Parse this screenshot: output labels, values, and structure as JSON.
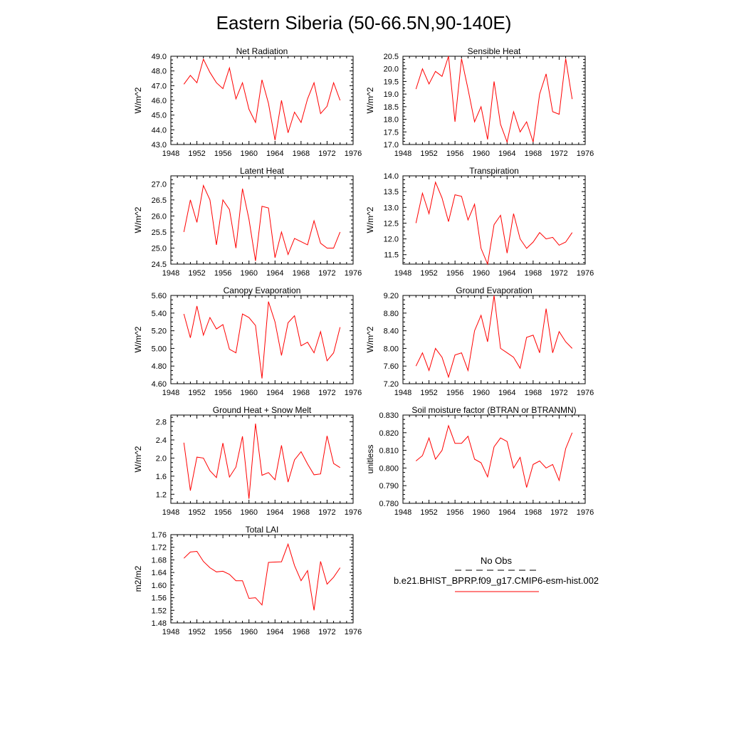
{
  "figure": {
    "title": "Eastern Siberia (50-66.5N,90-140E)",
    "line_color": "#ff0000",
    "legend": {
      "obs_label": "No Obs",
      "model_label": "b.e21.BHIST_BPRP.f09_g17.CMIP6-esm-hist.002"
    }
  },
  "chart_data": [
    {
      "type": "line",
      "title": "Net Radiation",
      "ylabel": "W/m^2",
      "xlim": [
        1948,
        1976
      ],
      "xticks": [
        "1948",
        "1952",
        "1956",
        "1960",
        "1964",
        "1968",
        "1972",
        "1976"
      ],
      "ylim": [
        43.0,
        49.0
      ],
      "yticks": [
        "43.0",
        "44.0",
        "45.0",
        "46.0",
        "47.0",
        "48.0",
        "49.0"
      ],
      "series": [
        {
          "x": [
            1950,
            1951,
            1952,
            1953,
            1954,
            1955,
            1956,
            1957,
            1958,
            1959,
            1960,
            1961,
            1962,
            1963,
            1964,
            1965,
            1966,
            1967,
            1968,
            1969,
            1970,
            1971,
            1972,
            1973,
            1974
          ],
          "values": [
            47.1,
            47.7,
            47.2,
            48.8,
            47.9,
            47.2,
            46.8,
            48.2,
            46.1,
            47.2,
            45.4,
            44.5,
            47.4,
            45.8,
            43.3,
            46.0,
            43.8,
            45.2,
            44.5,
            46.1,
            47.2,
            45.1,
            45.6,
            47.2,
            46.0
          ]
        }
      ]
    },
    {
      "type": "line",
      "title": "Sensible Heat",
      "ylabel": "W/m^2",
      "xlim": [
        1948,
        1976
      ],
      "xticks": [
        "1948",
        "1952",
        "1956",
        "1960",
        "1964",
        "1968",
        "1972",
        "1976"
      ],
      "ylim": [
        17.0,
        20.5
      ],
      "yticks": [
        "17.0",
        "17.5",
        "18.0",
        "18.5",
        "19.0",
        "19.5",
        "20.0",
        "20.5"
      ],
      "series": [
        {
          "x": [
            1950,
            1951,
            1952,
            1953,
            1954,
            1955,
            1956,
            1957,
            1958,
            1959,
            1960,
            1961,
            1962,
            1963,
            1964,
            1965,
            1966,
            1967,
            1968,
            1969,
            1970,
            1971,
            1972,
            1973,
            1974
          ],
          "values": [
            19.2,
            20.0,
            19.4,
            19.9,
            19.7,
            20.5,
            17.9,
            20.4,
            19.2,
            17.9,
            18.5,
            17.2,
            19.5,
            17.8,
            17.1,
            18.3,
            17.5,
            17.9,
            17.1,
            19.0,
            19.8,
            18.3,
            18.2,
            20.4,
            18.8
          ]
        }
      ]
    },
    {
      "type": "line",
      "title": "Latent Heat",
      "ylabel": "W/m^2",
      "xlim": [
        1948,
        1976
      ],
      "xticks": [
        "1948",
        "1952",
        "1956",
        "1960",
        "1964",
        "1968",
        "1972",
        "1976"
      ],
      "ylim": [
        24.5,
        27.25
      ],
      "yticks": [
        "24.5",
        "25.0",
        "25.5",
        "26.0",
        "26.5",
        "27.0"
      ],
      "series": [
        {
          "x": [
            1950,
            1951,
            1952,
            1953,
            1954,
            1955,
            1956,
            1957,
            1958,
            1959,
            1960,
            1961,
            1962,
            1963,
            1964,
            1965,
            1966,
            1967,
            1968,
            1969,
            1970,
            1971,
            1972,
            1973,
            1974
          ],
          "values": [
            25.5,
            26.5,
            25.8,
            26.95,
            26.5,
            25.1,
            26.5,
            26.2,
            25.0,
            26.85,
            25.9,
            24.6,
            26.3,
            26.25,
            24.7,
            25.5,
            24.8,
            25.3,
            25.2,
            25.1,
            25.85,
            25.15,
            25.0,
            25.0,
            25.5
          ]
        }
      ]
    },
    {
      "type": "line",
      "title": "Transpiration",
      "ylabel": "W/m^2",
      "xlim": [
        1948,
        1976
      ],
      "xticks": [
        "1948",
        "1952",
        "1956",
        "1960",
        "1964",
        "1968",
        "1972",
        "1976"
      ],
      "ylim": [
        11.2,
        14.0
      ],
      "yticks": [
        "11.5",
        "12.0",
        "12.5",
        "13.0",
        "13.5",
        "14.0"
      ],
      "series": [
        {
          "x": [
            1950,
            1951,
            1952,
            1953,
            1954,
            1955,
            1956,
            1957,
            1958,
            1959,
            1960,
            1961,
            1962,
            1963,
            1964,
            1965,
            1966,
            1967,
            1968,
            1969,
            1970,
            1971,
            1972,
            1973,
            1974
          ],
          "values": [
            12.5,
            13.45,
            12.8,
            13.8,
            13.3,
            12.55,
            13.4,
            13.35,
            12.6,
            13.1,
            11.7,
            11.2,
            12.45,
            12.75,
            11.55,
            12.8,
            12.0,
            11.7,
            11.9,
            12.2,
            12.0,
            12.05,
            11.8,
            11.9,
            12.2
          ]
        }
      ]
    },
    {
      "type": "line",
      "title": "Canopy Evaporation",
      "ylabel": "W/m^2",
      "xlim": [
        1948,
        1976
      ],
      "xticks": [
        "1948",
        "1952",
        "1956",
        "1960",
        "1964",
        "1968",
        "1972",
        "1976"
      ],
      "ylim": [
        4.6,
        5.6
      ],
      "yticks": [
        "4.60",
        "4.80",
        "5.00",
        "5.20",
        "5.40",
        "5.60"
      ],
      "series": [
        {
          "x": [
            1950,
            1951,
            1952,
            1953,
            1954,
            1955,
            1956,
            1957,
            1958,
            1959,
            1960,
            1961,
            1962,
            1963,
            1964,
            1965,
            1966,
            1967,
            1968,
            1969,
            1970,
            1971,
            1972,
            1973,
            1974
          ],
          "values": [
            5.39,
            5.12,
            5.48,
            5.15,
            5.35,
            5.22,
            5.27,
            4.99,
            4.95,
            5.39,
            5.35,
            5.26,
            4.66,
            5.53,
            5.3,
            4.92,
            5.29,
            5.37,
            5.03,
            5.07,
            4.95,
            5.19,
            4.86,
            4.95,
            5.24
          ]
        }
      ]
    },
    {
      "type": "line",
      "title": "Ground Evaporation",
      "ylabel": "W/m^2",
      "xlim": [
        1948,
        1976
      ],
      "xticks": [
        "1948",
        "1952",
        "1956",
        "1960",
        "1964",
        "1968",
        "1972",
        "1976"
      ],
      "ylim": [
        7.2,
        9.2
      ],
      "yticks": [
        "7.20",
        "7.60",
        "8.00",
        "8.40",
        "8.80",
        "9.20"
      ],
      "series": [
        {
          "x": [
            1950,
            1951,
            1952,
            1953,
            1954,
            1955,
            1956,
            1957,
            1958,
            1959,
            1960,
            1961,
            1962,
            1963,
            1964,
            1965,
            1966,
            1967,
            1968,
            1969,
            1970,
            1971,
            1972,
            1973,
            1974
          ],
          "values": [
            7.6,
            7.9,
            7.5,
            8.0,
            7.8,
            7.35,
            7.85,
            7.9,
            7.5,
            8.4,
            8.75,
            8.15,
            9.2,
            8.0,
            7.9,
            7.8,
            7.55,
            8.25,
            8.3,
            7.9,
            8.9,
            7.9,
            8.38,
            8.15,
            8.0
          ]
        }
      ]
    },
    {
      "type": "line",
      "title": "Ground Heat + Snow Melt",
      "ylabel": "W/m^2",
      "xlim": [
        1948,
        1976
      ],
      "xticks": [
        "1948",
        "1952",
        "1956",
        "1960",
        "1964",
        "1968",
        "1972",
        "1976"
      ],
      "ylim": [
        1.0,
        2.95
      ],
      "yticks": [
        "1.2",
        "1.6",
        "2.0",
        "2.4",
        "2.8"
      ],
      "series": [
        {
          "x": [
            1950,
            1951,
            1952,
            1953,
            1954,
            1955,
            1956,
            1957,
            1958,
            1959,
            1960,
            1961,
            1962,
            1963,
            1964,
            1965,
            1966,
            1967,
            1968,
            1969,
            1970,
            1971,
            1972,
            1973,
            1974
          ],
          "values": [
            2.34,
            1.28,
            2.02,
            2.0,
            1.72,
            1.57,
            2.33,
            1.58,
            1.8,
            2.48,
            1.1,
            2.76,
            1.62,
            1.68,
            1.52,
            2.28,
            1.47,
            1.96,
            2.14,
            1.87,
            1.63,
            1.65,
            2.49,
            1.88,
            1.79
          ]
        }
      ]
    },
    {
      "type": "line",
      "title": "Soil moisture factor (BTRAN or BTRANMN)",
      "ylabel": "unitless",
      "xlim": [
        1948,
        1976
      ],
      "xticks": [
        "1948",
        "1952",
        "1956",
        "1960",
        "1964",
        "1968",
        "1972",
        "1976"
      ],
      "ylim": [
        0.78,
        0.83
      ],
      "yticks": [
        "0.780",
        "0.790",
        "0.800",
        "0.810",
        "0.820",
        "0.830"
      ],
      "series": [
        {
          "x": [
            1950,
            1951,
            1952,
            1953,
            1954,
            1955,
            1956,
            1957,
            1958,
            1959,
            1960,
            1961,
            1962,
            1963,
            1964,
            1965,
            1966,
            1967,
            1968,
            1969,
            1970,
            1971,
            1972,
            1973,
            1974
          ],
          "values": [
            0.804,
            0.807,
            0.817,
            0.805,
            0.81,
            0.824,
            0.814,
            0.814,
            0.818,
            0.805,
            0.803,
            0.795,
            0.812,
            0.817,
            0.815,
            0.8,
            0.806,
            0.789,
            0.802,
            0.804,
            0.8,
            0.802,
            0.793,
            0.811,
            0.82
          ]
        }
      ]
    },
    {
      "type": "line",
      "title": "Total LAI",
      "ylabel": "m2/m2",
      "xlim": [
        1948,
        1976
      ],
      "xticks": [
        "1948",
        "1952",
        "1956",
        "1960",
        "1964",
        "1968",
        "1972",
        "1976"
      ],
      "ylim": [
        1.48,
        1.76
      ],
      "yticks": [
        "1.48",
        "1.52",
        "1.56",
        "1.60",
        "1.64",
        "1.68",
        "1.72",
        "1.76"
      ],
      "series": [
        {
          "x": [
            1950,
            1951,
            1952,
            1953,
            1954,
            1955,
            1956,
            1957,
            1958,
            1959,
            1960,
            1961,
            1962,
            1963,
            1964,
            1965,
            1966,
            1967,
            1968,
            1969,
            1970,
            1971,
            1972,
            1973,
            1974
          ],
          "values": [
            1.685,
            1.705,
            1.707,
            1.675,
            1.655,
            1.642,
            1.644,
            1.634,
            1.614,
            1.614,
            1.558,
            1.56,
            1.537,
            1.672,
            1.673,
            1.674,
            1.73,
            1.662,
            1.614,
            1.646,
            1.52,
            1.675,
            1.603,
            1.625,
            1.655
          ]
        }
      ]
    }
  ]
}
